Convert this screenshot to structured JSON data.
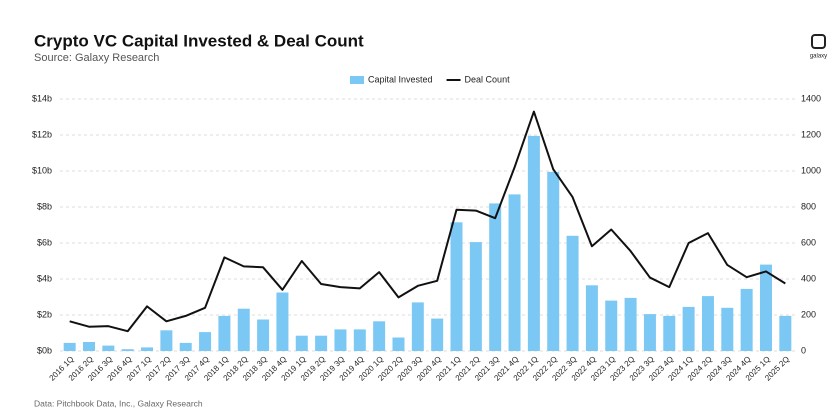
{
  "chart_data": {
    "type": "bar-line",
    "title": "Crypto VC Capital Invested & Deal Count",
    "subtitle": "Source: Galaxy Research",
    "note": "Data: Pitchbook Data, Inc., Galaxy Research",
    "logo": "galaxy",
    "categories": [
      "2016 1Q",
      "2016 2Q",
      "2016 3Q",
      "2016 4Q",
      "2017 1Q",
      "2017 2Q",
      "2017 3Q",
      "2017 4Q",
      "2018 1Q",
      "2018 2Q",
      "2018 3Q",
      "2018 4Q",
      "2019 1Q",
      "2019 2Q",
      "2019 3Q",
      "2019 4Q",
      "2020 1Q",
      "2020 2Q",
      "2020 3Q",
      "2020 4Q",
      "2021 1Q",
      "2021 2Q",
      "2021 3Q",
      "2021 4Q",
      "2022 1Q",
      "2022 2Q",
      "2022 3Q",
      "2022 4Q",
      "2023 1Q",
      "2023 2Q",
      "2023 3Q",
      "2023 4Q",
      "2024 1Q",
      "2024 2Q",
      "2024 3Q",
      "2024 4Q",
      "2025 1Q",
      "2025 2Q"
    ],
    "series": [
      {
        "name": "Capital Invested",
        "type": "bar",
        "color": "#7cc8f4",
        "values": [
          0.45,
          0.5,
          0.3,
          0.1,
          0.2,
          1.15,
          0.45,
          1.05,
          1.95,
          2.35,
          1.75,
          3.25,
          0.85,
          0.85,
          1.2,
          1.2,
          1.65,
          0.75,
          2.7,
          1.8,
          7.15,
          6.05,
          8.2,
          8.7,
          11.95,
          9.95,
          6.4,
          3.65,
          2.8,
          2.95,
          2.05,
          1.95,
          2.45,
          3.05,
          2.4,
          3.45,
          4.8,
          1.95
        ]
      },
      {
        "name": "Deal Count",
        "type": "line",
        "color": "#111111",
        "axis": "y2",
        "values": [
          165,
          135,
          138,
          110,
          248,
          165,
          195,
          240,
          520,
          470,
          465,
          340,
          500,
          372,
          355,
          348,
          438,
          298,
          362,
          390,
          785,
          780,
          738,
          1020,
          1330,
          1010,
          855,
          582,
          675,
          555,
          408,
          355,
          600,
          655,
          478,
          410,
          442,
          375
        ]
      }
    ],
    "ylim": [
      0,
      14
    ],
    "yticks": [
      {
        "value": 0,
        "label": "$0b"
      },
      {
        "value": 2,
        "label": "$2b"
      },
      {
        "value": 4,
        "label": "$4b"
      },
      {
        "value": 6,
        "label": "$6b"
      },
      {
        "value": 8,
        "label": "$8b"
      },
      {
        "value": 10,
        "label": "$10b"
      },
      {
        "value": 12,
        "label": "$12b"
      },
      {
        "value": 14,
        "label": "$14b"
      }
    ],
    "y2lim": [
      0,
      1400
    ],
    "y2ticks": [
      0,
      200,
      400,
      600,
      800,
      1000,
      1200,
      1400
    ],
    "grid": true
  }
}
